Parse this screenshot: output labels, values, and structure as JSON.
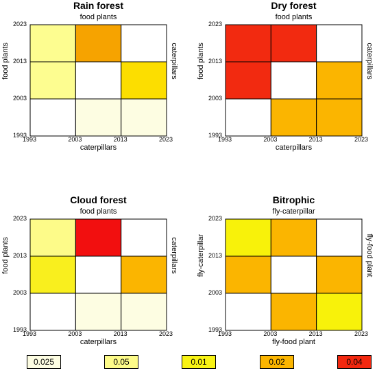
{
  "colors": {
    "v0025": "#fdfde2",
    "v005": "#fdfb9b",
    "v001": "#f9f315",
    "v002": "#fbb500",
    "v004": "#f2280f",
    "v005a": "#f7fc85",
    "v002b": "#fcd200",
    "v004b": "#f53d14"
  },
  "chart_data": [
    {
      "type": "heatmap",
      "title": "Rain forest",
      "top_label": "food plants",
      "bottom_label": "caterpillars",
      "left_label": "food plants",
      "right_label": "caterpillars",
      "x_ticks": [
        "1993",
        "2003",
        "2013",
        "2023"
      ],
      "y_ticks": [
        "2023",
        "2013",
        "2003",
        "1993"
      ],
      "cells": [
        [
          "0.05",
          "0.02",
          ""
        ],
        [
          "0.05",
          "",
          "0.01"
        ],
        [
          "",
          "0.025",
          "0.025"
        ]
      ]
    },
    {
      "type": "heatmap",
      "title": "Dry forest",
      "top_label": "food plants",
      "bottom_label": "caterpillars",
      "left_label": "food plants",
      "right_label": "caterpillars",
      "x_ticks": [
        "1993",
        "2003",
        "2013",
        "2023"
      ],
      "y_ticks": [
        "2023",
        "2013",
        "2003",
        "1993"
      ],
      "cells": [
        [
          "0.04",
          "0.04",
          ""
        ],
        [
          "0.04",
          "",
          "0.02"
        ],
        [
          "",
          "0.02",
          "0.02"
        ]
      ]
    },
    {
      "type": "heatmap",
      "title": "Cloud forest",
      "top_label": "food plants",
      "bottom_label": "caterpillars",
      "left_label": "food plants",
      "right_label": "caterpillars",
      "x_ticks": [
        "1993",
        "2003",
        "2013",
        "2023"
      ],
      "y_ticks": [
        "2023",
        "2013",
        "2003",
        "1993"
      ],
      "cells": [
        [
          "0.05",
          "0.04",
          ""
        ],
        [
          "0.01",
          "",
          "0.02"
        ],
        [
          "",
          "0.025",
          "0.025"
        ]
      ]
    },
    {
      "type": "heatmap",
      "title": "Bitrophic",
      "top_label": "fly-caterpillar",
      "bottom_label": "fly-food plant",
      "left_label": "fly-caterpillar",
      "right_label": "fly-food plant",
      "x_ticks": [
        "1993",
        "2003",
        "2013",
        "2023"
      ],
      "y_ticks": [
        "2023",
        "2013",
        "2003",
        "1993"
      ],
      "cells": [
        [
          "0.01",
          "0.02",
          ""
        ],
        [
          "0.02",
          "",
          "0.02"
        ],
        [
          "",
          "0.02",
          "0.01"
        ]
      ]
    }
  ],
  "legend": [
    {
      "label": "0.025",
      "key": "0.025"
    },
    {
      "label": "0.05",
      "key": "0.05"
    },
    {
      "label": "0.01",
      "key": "0.01"
    },
    {
      "label": "0.02",
      "key": "0.02"
    },
    {
      "label": "0.04",
      "key": "0.04"
    }
  ],
  "palette": {
    "0.025": "#fdfde2",
    "0.05": "#fdfb89",
    "0.01": "#f8f314",
    "0.02": "#fbb500",
    "0.04": "#f2280f"
  }
}
